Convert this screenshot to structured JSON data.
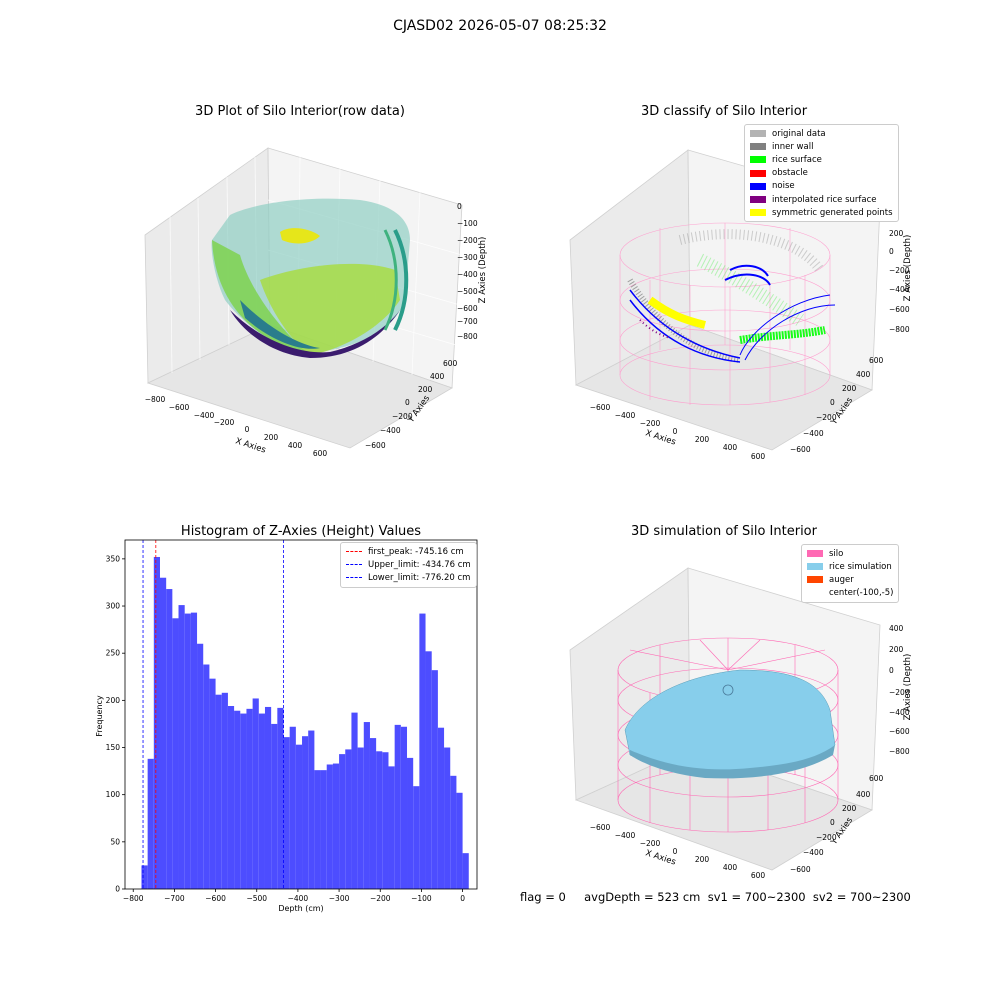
{
  "figure": {
    "suptitle": "CJASD02 2026-05-07 08:25:32"
  },
  "panels": {
    "raw": {
      "title": "3D Plot of Silo Interior(row data)",
      "xlabel": "X Axies",
      "ylabel": "Y Axies",
      "zlabel": "Z Axies (Depth)",
      "xticks": [
        "−800",
        "−600",
        "−400",
        "−200",
        "0",
        "200",
        "400",
        "600"
      ],
      "yticks": [
        "−600",
        "−400",
        "−200",
        "0",
        "200",
        "400",
        "600"
      ],
      "zticks": [
        "0",
        "−100",
        "−200",
        "−300",
        "−400",
        "−500",
        "−600",
        "−700",
        "−800"
      ]
    },
    "classify": {
      "title": "3D classify of Silo Interior",
      "xlabel": "X Axies",
      "ylabel": "Y Axies",
      "zlabel": "Z Axies (Depth)",
      "xticks": [
        "−600",
        "−400",
        "−200",
        "0",
        "200",
        "400",
        "600"
      ],
      "yticks": [
        "−600",
        "−400",
        "−200",
        "0",
        "200",
        "400",
        "600"
      ],
      "zticks": [
        "200",
        "0",
        "−200",
        "−400",
        "−600",
        "−800"
      ],
      "legend": [
        {
          "label": "original data",
          "color": "#b3b3b3"
        },
        {
          "label": "inner wall",
          "color": "#808080"
        },
        {
          "label": "rice surface",
          "color": "#00ff00"
        },
        {
          "label": "obstacle",
          "color": "#ff0000"
        },
        {
          "label": "noise",
          "color": "#0000ff"
        },
        {
          "label": "interpolated rice surface",
          "color": "#800080"
        },
        {
          "label": "symmetric generated points",
          "color": "#ffff00"
        }
      ]
    },
    "simulation": {
      "title": "3D simulation of Silo Interior",
      "xlabel": "X Axies",
      "ylabel": "Y Axies",
      "zlabel": "Z Axies (Depth)",
      "xticks": [
        "−600",
        "−400",
        "−200",
        "0",
        "200",
        "400",
        "600"
      ],
      "yticks": [
        "−600",
        "−400",
        "−200",
        "0",
        "200",
        "400",
        "600"
      ],
      "zticks": [
        "400",
        "200",
        "0",
        "−200",
        "−400",
        "−600",
        "−800"
      ],
      "legend": [
        {
          "label": "silo",
          "color": "#ff69b4"
        },
        {
          "label": "rice simulation",
          "color": "#87ceeb"
        },
        {
          "label": "auger",
          "color": "#ff4500"
        },
        {
          "label": "center(-100,-5)",
          "color": ""
        }
      ]
    }
  },
  "chart_data": {
    "type": "bar",
    "title": "Histogram of Z-Axies (Height) Values",
    "xlabel": "Depth (cm)",
    "ylabel": "Frequency",
    "xlim": [
      -820,
      35
    ],
    "ylim": [
      0,
      370
    ],
    "xticks": [
      -800,
      -700,
      -600,
      -500,
      -400,
      -300,
      -200,
      -100,
      0
    ],
    "yticks": [
      0,
      50,
      100,
      150,
      200,
      250,
      300,
      350
    ],
    "color": "#4d4dff",
    "bin_width": 15,
    "bin_start": -780,
    "values": [
      25,
      138,
      352,
      330,
      318,
      287,
      301,
      292,
      293,
      260,
      238,
      223,
      206,
      208,
      194,
      189,
      186,
      191,
      202,
      186,
      193,
      175,
      192,
      161,
      172,
      153,
      162,
      168,
      126,
      126,
      132,
      133,
      143,
      148,
      187,
      150,
      177,
      160,
      146,
      145,
      130,
      174,
      172,
      139,
      109,
      292,
      252,
      232,
      171,
      150,
      120,
      102,
      38
    ],
    "lines": [
      {
        "label": "first_peak: -745.16 cm",
        "x": -745.16,
        "color": "#ff0000"
      },
      {
        "label": "Upper_limit: -434.76 cm",
        "x": -434.76,
        "color": "#0000ff"
      },
      {
        "label": "Lower_limit: -776.20 cm",
        "x": -776.2,
        "color": "#0000ff"
      }
    ],
    "legend_loc": "upper right"
  },
  "footer": {
    "text": "flag = 0     avgDepth = 523 cm  sv1 = 700~2300  sv2 = 700~2300"
  }
}
